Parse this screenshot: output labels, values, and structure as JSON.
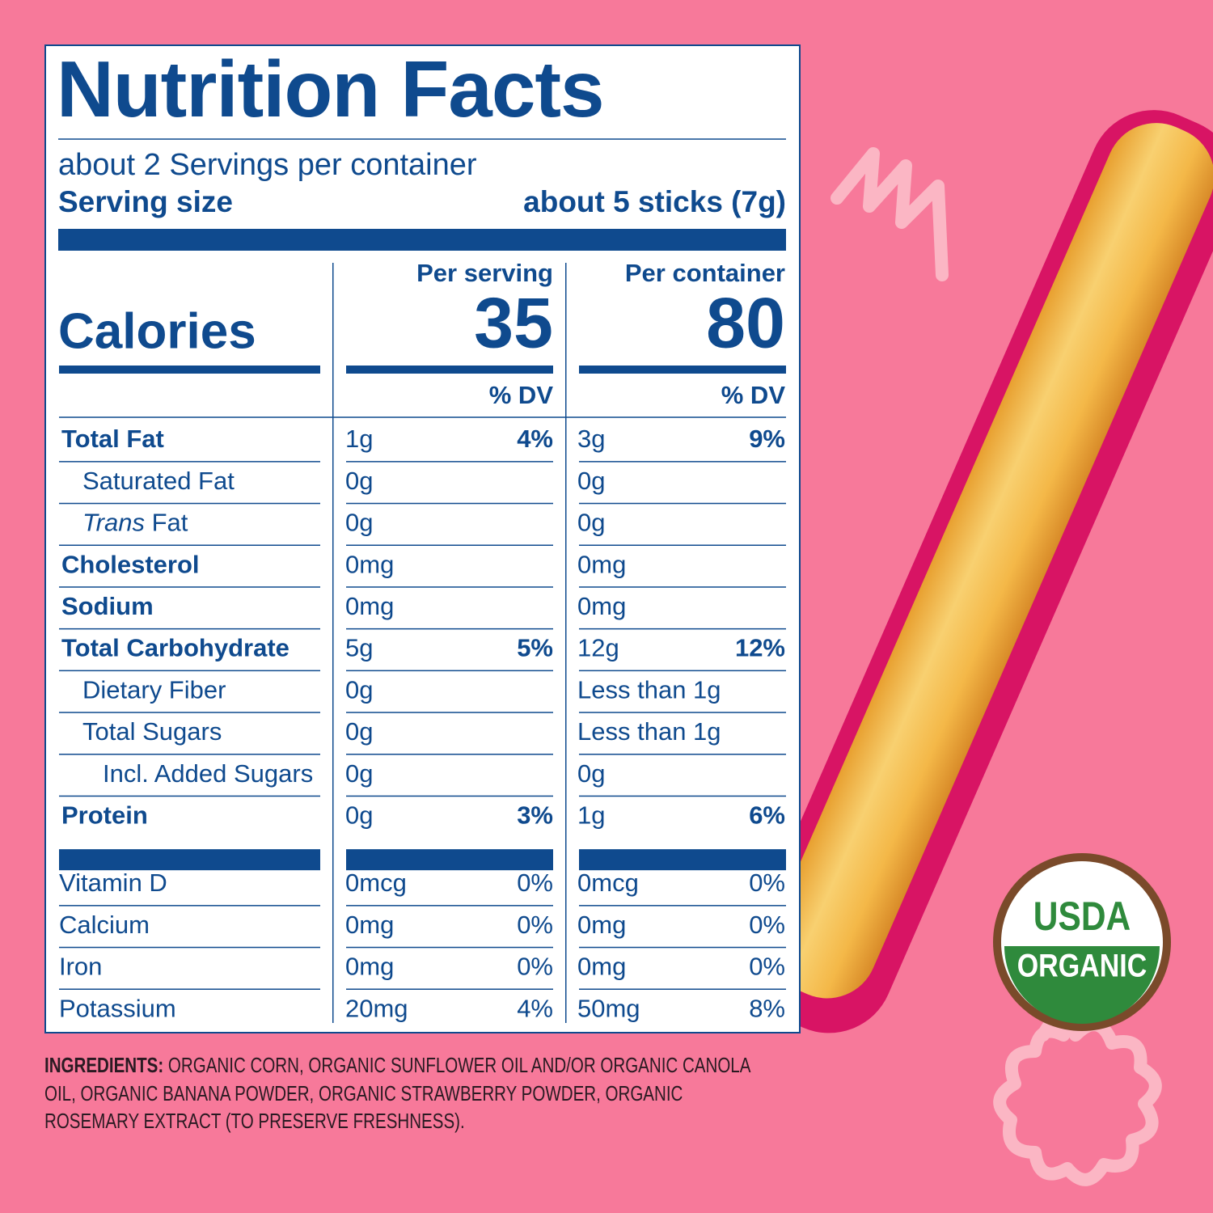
{
  "panel": {
    "title": "Nutrition Facts",
    "servings": "about 2 Servings per container",
    "serving_size_label": "Serving size",
    "serving_size": "about 5 sticks (7g)",
    "columns": [
      "Per serving",
      "Per container"
    ],
    "calories_label": "Calories",
    "calories": [
      "35",
      "80"
    ],
    "dv_headers": [
      "% DV",
      "% DV"
    ],
    "rows": [
      {
        "name": "Total Fat",
        "style": "bold",
        "serving": "1g",
        "serving_dv": "4%",
        "container": "3g",
        "container_dv": "9%"
      },
      {
        "name": "Saturated Fat",
        "style": "sub",
        "serving": "0g",
        "container": "0g"
      },
      {
        "name": "Trans Fat",
        "style": "italic-sub",
        "serving": "0g",
        "container": "0g"
      },
      {
        "name": "Cholesterol",
        "style": "bold",
        "serving": "0mg",
        "container": "0mg"
      },
      {
        "name": "Sodium",
        "style": "bold",
        "serving": "0mg",
        "container": "0mg"
      },
      {
        "name": "Total Carbohydrate",
        "style": "bold",
        "serving": "5g",
        "serving_dv": "5%",
        "container": "12g",
        "container_dv": "12%"
      },
      {
        "name": "Dietary Fiber",
        "style": "sub",
        "serving": "0g",
        "container": "Less than 1g"
      },
      {
        "name": "Total Sugars",
        "style": "sub",
        "serving": "0g",
        "container": "Less than 1g"
      },
      {
        "name": "Incl. Added Sugars",
        "style": "subsub",
        "serving": "0g",
        "container": "0g"
      },
      {
        "name": "Protein",
        "style": "bold",
        "serving": "0g",
        "serving_dv": "3%",
        "container": "1g",
        "container_dv": "6%"
      }
    ],
    "vitamins": [
      {
        "name": "Vitamin D",
        "serving": "0mcg",
        "serving_dv": "0%",
        "container": "0mcg",
        "container_dv": "0%"
      },
      {
        "name": "Calcium",
        "serving": "0mg",
        "serving_dv": "0%",
        "container": "0mg",
        "container_dv": "0%"
      },
      {
        "name": "Iron",
        "serving": "0mg",
        "serving_dv": "0%",
        "container": "0mg",
        "container_dv": "0%"
      },
      {
        "name": "Potassium",
        "serving": "20mg",
        "serving_dv": "4%",
        "container": "50mg",
        "container_dv": "8%"
      }
    ]
  },
  "ingredients": {
    "label": "INGREDIENTS:",
    "text": "ORGANIC CORN, ORGANIC SUNFLOWER OIL AND/OR ORGANIC CANOLA OIL, ORGANIC BANANA POWDER, ORGANIC STRAWBERRY POWDER, ORGANIC ROSEMARY EXTRACT (TO PRESERVE FRESHNESS)."
  },
  "badge": {
    "top": "USDA",
    "bottom": "ORGANIC"
  }
}
